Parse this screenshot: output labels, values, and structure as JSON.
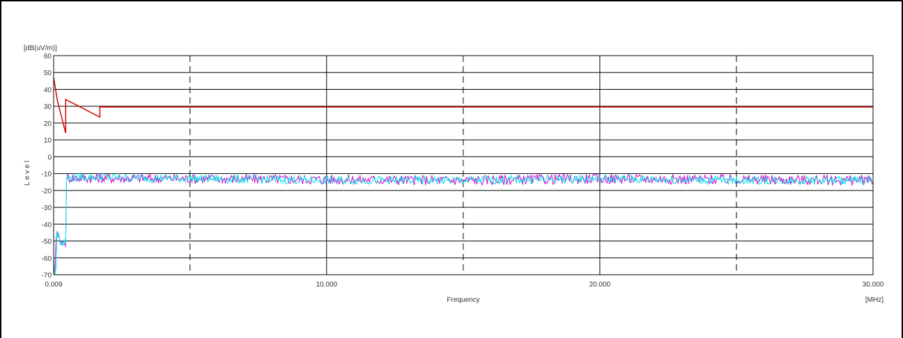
{
  "chart_data": {
    "type": "line",
    "ylabel": "Level",
    "yunit": "[dB(uV/m)]",
    "xlabel": "Frequency",
    "xunit": "[MHz]",
    "xlim": [
      0.009,
      30.0
    ],
    "ylim": [
      -70,
      60
    ],
    "x_ticks": [
      "0.009",
      "10.000",
      "20.000",
      "30.000"
    ],
    "y_ticks": [
      "60",
      "50",
      "40",
      "30",
      "20",
      "10",
      "0",
      "-10",
      "-20",
      "-30",
      "-40",
      "-50",
      "-60",
      "-70"
    ],
    "grid": true,
    "series": [
      {
        "color": "#d40000",
        "x": [
          0.009,
          0.15,
          0.45,
          0.45,
          1.7,
          1.7,
          30.0
        ],
        "y": [
          47,
          33,
          14,
          34,
          23.5,
          29.5,
          29.5
        ]
      },
      {
        "color": "#d000d0",
        "x": [
          0.009,
          0.05,
          0.1,
          0.15,
          0.25,
          0.3,
          0.35,
          0.45,
          0.48,
          0.55,
          5,
          10,
          15,
          20,
          25,
          30.0
        ],
        "y": [
          -66,
          -70,
          -48,
          -45,
          -50,
          -52,
          -50,
          -53,
          -12,
          -12.5,
          -13,
          -13.5,
          -14,
          -13,
          -13.5,
          -14
        ]
      },
      {
        "color": "#00e5e5",
        "x": [
          0.009,
          0.05,
          0.1,
          0.12,
          0.15,
          0.2,
          0.25,
          0.3,
          0.35,
          0.4,
          0.45,
          0.48,
          0.55,
          1,
          5,
          10,
          15,
          20,
          25,
          30.0
        ],
        "y": [
          -60,
          -70,
          -66,
          -44,
          -48,
          -46,
          -52,
          -50,
          -53,
          -49,
          -52,
          -12,
          -13,
          -12,
          -13,
          -14,
          -14,
          -13,
          -14,
          -14
        ]
      }
    ]
  }
}
